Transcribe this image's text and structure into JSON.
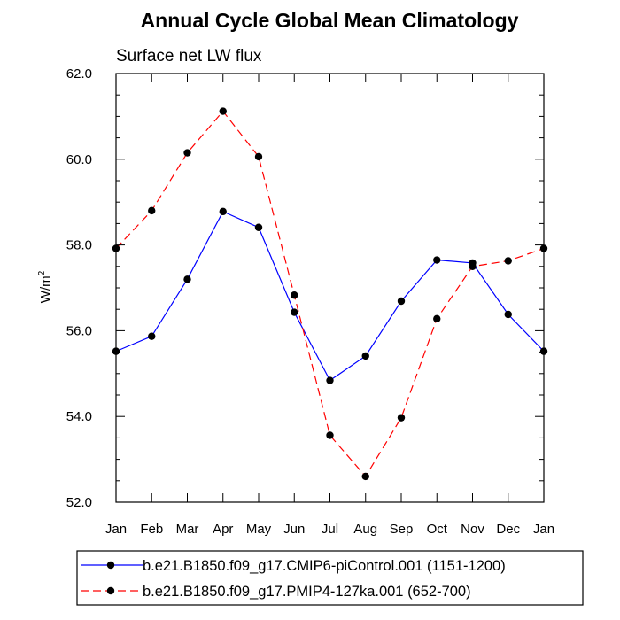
{
  "chart_data": {
    "type": "line",
    "title": "Annual Cycle Global Mean Climatology",
    "subtitle": "Surface net LW flux",
    "ylabel": "W/m",
    "ylabel_sup": "2",
    "xlabel": "",
    "ylim": [
      52.0,
      62.0
    ],
    "yticks": [
      "52.0",
      "54.0",
      "56.0",
      "58.0",
      "60.0",
      "62.0"
    ],
    "ytick_values": [
      52,
      54,
      56,
      58,
      60,
      62
    ],
    "categories": [
      "Jan",
      "Feb",
      "Mar",
      "Apr",
      "May",
      "Jun",
      "Jul",
      "Aug",
      "Sep",
      "Oct",
      "Nov",
      "Dec",
      "Jan"
    ],
    "grid": false,
    "legend_position": "bottom",
    "series": [
      {
        "name": "b.e21.B1850.f09_g17.CMIP6-piControl.001 (1151-1200)",
        "color": "#0000ff",
        "dash": "solid",
        "marker": "filled-circle",
        "values": [
          55.52,
          55.87,
          57.2,
          58.78,
          58.41,
          56.43,
          54.84,
          55.41,
          56.69,
          57.65,
          57.58,
          56.38,
          55.52
        ]
      },
      {
        "name": "b.e21.B1850.f09_g17.PMIP4-127ka.001 (652-700)",
        "color": "#ff0000",
        "dash": "dashed",
        "marker": "filled-circle",
        "values": [
          57.92,
          58.8,
          60.15,
          61.12,
          60.06,
          56.83,
          53.56,
          52.6,
          53.97,
          56.28,
          57.5,
          57.63,
          57.92
        ]
      }
    ]
  }
}
